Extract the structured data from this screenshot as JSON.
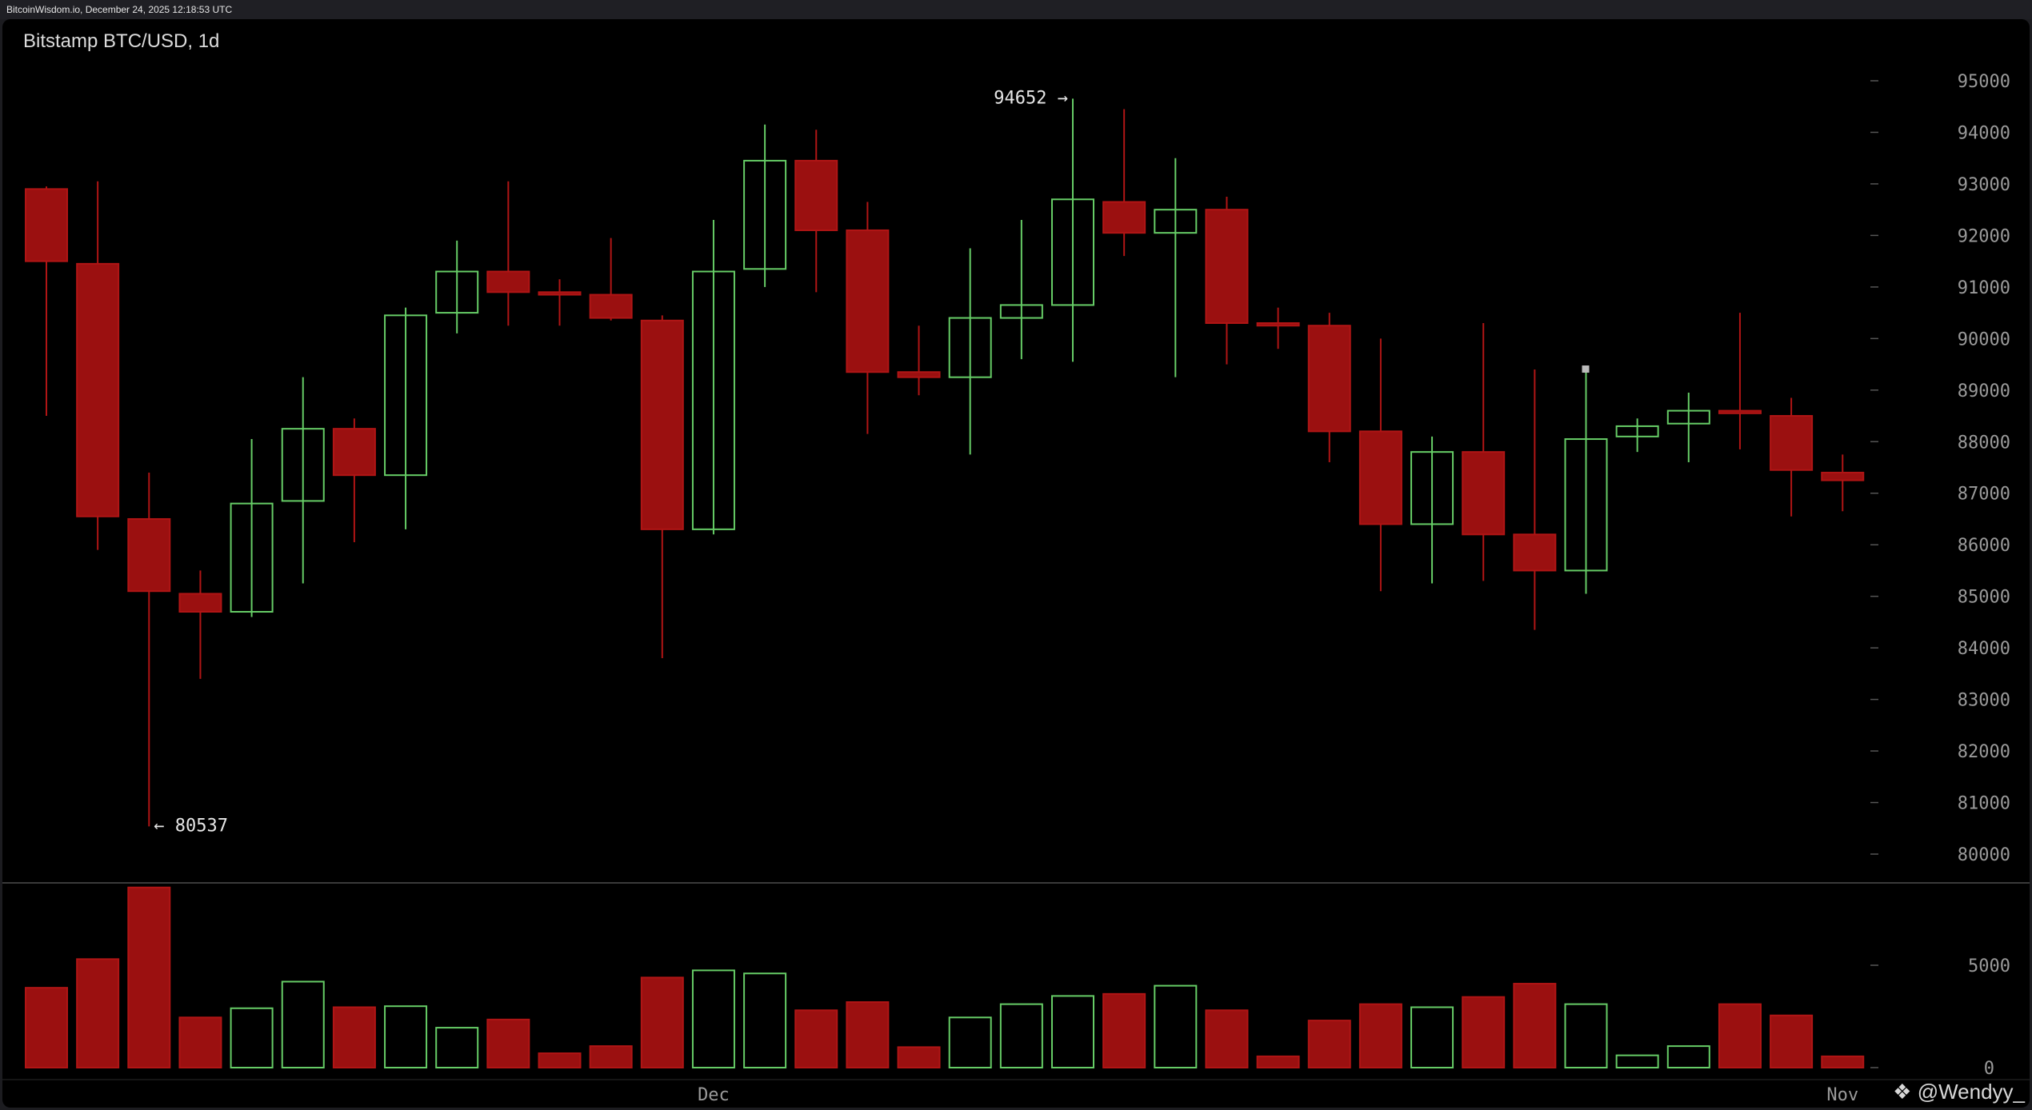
{
  "header": {
    "timestamp": "BitcoinWisdom.io, December 24, 2025 12:18:53 UTC"
  },
  "chart_title": "Bitstamp BTC/USD, 1d",
  "watermark": "@Wendyy_",
  "colors": {
    "up": "#66cc66",
    "down": "#b01515",
    "down_fill": "#9b1010",
    "axis_text": "#9a9a9a",
    "background": "#000000"
  },
  "chart_data": {
    "type": "candlestick",
    "price_axis": {
      "ylim": [
        79500,
        95500
      ],
      "ticks": [
        80000,
        81000,
        82000,
        83000,
        84000,
        85000,
        86000,
        87000,
        88000,
        89000,
        90000,
        91000,
        92000,
        93000,
        94000,
        95000
      ]
    },
    "volume_axis": {
      "ylim": [
        0,
        8800
      ],
      "ticks": [
        0,
        5000
      ]
    },
    "x_labels": [
      {
        "index": 13,
        "label": "Dec"
      },
      {
        "index": 35,
        "label": "Nov"
      }
    ],
    "annotations": [
      {
        "label": "94652 →",
        "index": 20,
        "price": 94652
      },
      {
        "label": "← 80537",
        "index": 2,
        "price": 80537
      }
    ],
    "candles": [
      {
        "o": 92900,
        "h": 92950,
        "l": 88500,
        "c": 91500,
        "v": 3900
      },
      {
        "o": 91450,
        "h": 93050,
        "l": 85900,
        "c": 86550,
        "v": 5300
      },
      {
        "o": 86500,
        "h": 87400,
        "l": 80537,
        "c": 85100,
        "v": 8800
      },
      {
        "o": 85050,
        "h": 85500,
        "l": 83400,
        "c": 84700,
        "v": 2450
      },
      {
        "o": 84700,
        "h": 88050,
        "l": 84600,
        "c": 86800,
        "v": 2900
      },
      {
        "o": 86850,
        "h": 89250,
        "l": 85250,
        "c": 88250,
        "v": 4200
      },
      {
        "o": 88250,
        "h": 88450,
        "l": 86050,
        "c": 87350,
        "v": 2950
      },
      {
        "o": 87350,
        "h": 90600,
        "l": 86300,
        "c": 90450,
        "v": 3000
      },
      {
        "o": 90500,
        "h": 91900,
        "l": 90100,
        "c": 91300,
        "v": 1950
      },
      {
        "o": 91300,
        "h": 93050,
        "l": 90250,
        "c": 90900,
        "v": 2350
      },
      {
        "o": 90900,
        "h": 91150,
        "l": 90250,
        "c": 90850,
        "v": 700
      },
      {
        "o": 90850,
        "h": 91950,
        "l": 90350,
        "c": 90400,
        "v": 1050
      },
      {
        "o": 90350,
        "h": 90450,
        "l": 83800,
        "c": 86300,
        "v": 4400
      },
      {
        "o": 86300,
        "h": 92300,
        "l": 86200,
        "c": 91300,
        "v": 4750
      },
      {
        "o": 91350,
        "h": 94150,
        "l": 91000,
        "c": 93450,
        "v": 4600
      },
      {
        "o": 93450,
        "h": 94050,
        "l": 90900,
        "c": 92100,
        "v": 2800
      },
      {
        "o": 92100,
        "h": 92650,
        "l": 88150,
        "c": 89350,
        "v": 3200
      },
      {
        "o": 89350,
        "h": 90250,
        "l": 88900,
        "c": 89250,
        "v": 1000
      },
      {
        "o": 89250,
        "h": 91750,
        "l": 87750,
        "c": 90400,
        "v": 2450
      },
      {
        "o": 90400,
        "h": 92300,
        "l": 89600,
        "c": 90650,
        "v": 3100
      },
      {
        "o": 90650,
        "h": 94652,
        "l": 89550,
        "c": 92700,
        "v": 3500
      },
      {
        "o": 92650,
        "h": 94450,
        "l": 91600,
        "c": 92050,
        "v": 3600
      },
      {
        "o": 92050,
        "h": 93500,
        "l": 89250,
        "c": 92500,
        "v": 4000
      },
      {
        "o": 92500,
        "h": 92750,
        "l": 89500,
        "c": 90300,
        "v": 2800
      },
      {
        "o": 90300,
        "h": 90600,
        "l": 89800,
        "c": 90250,
        "v": 550
      },
      {
        "o": 90250,
        "h": 90500,
        "l": 87600,
        "c": 88200,
        "v": 2300
      },
      {
        "o": 88200,
        "h": 90000,
        "l": 85100,
        "c": 86400,
        "v": 3100
      },
      {
        "o": 86400,
        "h": 88100,
        "l": 85250,
        "c": 87800,
        "v": 2950
      },
      {
        "o": 87800,
        "h": 90300,
        "l": 85300,
        "c": 86200,
        "v": 3450
      },
      {
        "o": 86200,
        "h": 89400,
        "l": 84350,
        "c": 85500,
        "v": 4100
      },
      {
        "o": 85500,
        "h": 89350,
        "l": 85050,
        "c": 88050,
        "v": 3100
      },
      {
        "o": 88100,
        "h": 88450,
        "l": 87800,
        "c": 88300,
        "v": 600
      },
      {
        "o": 88350,
        "h": 88950,
        "l": 87600,
        "c": 88600,
        "v": 1050
      },
      {
        "o": 88600,
        "h": 90500,
        "l": 87850,
        "c": 88550,
        "v": 3100
      },
      {
        "o": 88500,
        "h": 88850,
        "l": 86550,
        "c": 87450,
        "v": 2550
      },
      {
        "o": 87400,
        "h": 87750,
        "l": 86650,
        "c": 87250,
        "v": 550
      }
    ]
  }
}
